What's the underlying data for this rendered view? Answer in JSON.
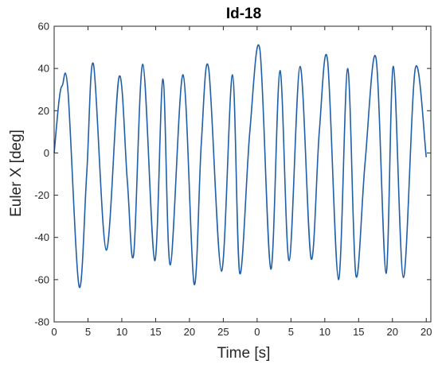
{
  "chart_data": {
    "type": "line",
    "title": "Id-18",
    "xlabel": "Time [s]",
    "ylabel": "Euler X [deg]",
    "xlim": [
      0,
      20.6
    ],
    "ylim": [
      -80,
      60
    ],
    "grid": false,
    "box": true,
    "x_ticks": [
      {
        "value": 0,
        "label": "0"
      },
      {
        "value": 1.85,
        "label": "5"
      },
      {
        "value": 3.7,
        "label": "10"
      },
      {
        "value": 5.55,
        "label": "15"
      },
      {
        "value": 7.4,
        "label": "20"
      },
      {
        "value": 9.25,
        "label": "25"
      },
      {
        "value": 11.1,
        "label": "0"
      },
      {
        "value": 12.95,
        "label": "5"
      },
      {
        "value": 14.8,
        "label": "10"
      },
      {
        "value": 16.65,
        "label": "15"
      },
      {
        "value": 18.5,
        "label": "20"
      },
      {
        "value": 20.35,
        "label": "20"
      }
    ],
    "y_ticks": [
      {
        "value": 60,
        "label": "60"
      },
      {
        "value": 40,
        "label": "40"
      },
      {
        "value": 20,
        "label": "20"
      },
      {
        "value": 0,
        "label": "0"
      },
      {
        "value": -20,
        "label": "-20"
      },
      {
        "value": -40,
        "label": "-40"
      },
      {
        "value": -60,
        "label": "-60"
      },
      {
        "value": -80,
        "label": "-80"
      }
    ],
    "series": [
      {
        "color": "#1f5fa8",
        "x": [
          0,
          0.27,
          0.45,
          0.75,
          1.36,
          1.78,
          2.15,
          2.85,
          3.55,
          4.0,
          4.35,
          4.85,
          5.5,
          5.95,
          6.35,
          7.05,
          7.65,
          8.05,
          8.45,
          9.15,
          9.75,
          10.15,
          10.7,
          11.25,
          11.85,
          12.35,
          12.85,
          13.45,
          14.05,
          14.5,
          14.95,
          15.55,
          16.05,
          16.5,
          17.0,
          17.6,
          18.15,
          18.55,
          19.1,
          19.75,
          20.35
        ],
        "y": [
          0,
          25,
          32,
          30,
          -63,
          -10,
          42,
          -46,
          36,
          -13,
          -48,
          42,
          -51,
          35,
          -53,
          37,
          -62,
          5,
          40,
          -56,
          37,
          -57,
          10,
          49,
          -55,
          39,
          -51,
          41,
          -50,
          10,
          44,
          -60,
          40,
          -58,
          -5,
          45,
          -57,
          41,
          -59,
          40,
          -2
        ]
      }
    ]
  }
}
